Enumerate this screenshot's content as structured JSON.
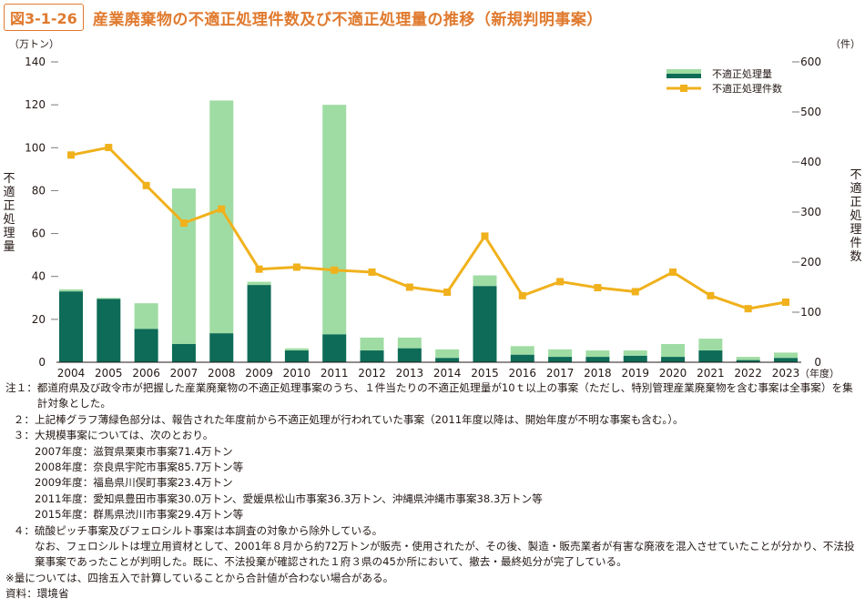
{
  "figure": {
    "label": "図3-1-26",
    "title": "産業廃棄物の不適正処理件数及び不適正処理量の推移（新規判明事案）"
  },
  "chart_data": {
    "type": "bar+line",
    "y_left_unit": "（万トン）",
    "y_right_unit": "（件）",
    "y_left_label": "不適正処理量",
    "y_right_label": "不適正処理件数",
    "x_unit": "（年度）",
    "y_left_lim": [
      0,
      140
    ],
    "y_right_lim": [
      0,
      600
    ],
    "y_left_ticks": [
      "0",
      "20",
      "40",
      "60",
      "80",
      "100",
      "120",
      "140"
    ],
    "y_right_ticks": [
      "0",
      "100",
      "200",
      "300",
      "400",
      "500",
      "600"
    ],
    "categories": [
      "2004",
      "2005",
      "2006",
      "2007",
      "2008",
      "2009",
      "2010",
      "2011",
      "2012",
      "2013",
      "2014",
      "2015",
      "2016",
      "2017",
      "2018",
      "2019",
      "2020",
      "2021",
      "2022",
      "2023"
    ],
    "series": [
      {
        "name": "不適正処理量",
        "kind": "stacked-bar",
        "color_main": "#0d6b57",
        "color_light": "#9fdca3",
        "dark_values": [
          33,
          29.5,
          15.5,
          8.5,
          13.5,
          36,
          5.5,
          13,
          5.5,
          6.5,
          2,
          35.5,
          3.5,
          2.5,
          2.5,
          3,
          2.5,
          5.5,
          1,
          2
        ],
        "light_values": [
          1,
          0.5,
          12,
          72.5,
          108.5,
          1.5,
          1,
          107,
          6,
          5,
          4,
          5,
          4,
          3.5,
          3,
          2.5,
          6,
          5.5,
          1.5,
          2.5
        ]
      },
      {
        "name": "不適正処理件数",
        "kind": "line",
        "color": "#f0b11c",
        "values": [
          414,
          429,
          353,
          278,
          306,
          186,
          190,
          184,
          180,
          150,
          140,
          252,
          133,
          161,
          149,
          141,
          180,
          133,
          107,
          120
        ]
      }
    ],
    "legend": {
      "position": "top-right",
      "entries": [
        "不適正処理量",
        "不適正処理件数"
      ]
    },
    "grid": "dashed-ticks"
  },
  "notes": [
    {
      "mark": "注１：",
      "text": "都道府県及び政令市が把握した産業廃棄物の不適正処理事案のうち、１件当たりの不適正処理量が10ｔ以上の事案（ただし、特別管理産業廃棄物を含む事案は全事案）を集計対象とした。"
    },
    {
      "mark": "２：",
      "text": "上記棒グラフ薄緑色部分は、報告された年度前から不適正処理が行われていた事案（2011年度以降は、開始年度が不明な事案も含む。）。"
    },
    {
      "mark": "３：",
      "text": "大規模事案については、次のとおり。",
      "subs": [
        "2007年度：滋賀県栗東市事案71.4万トン",
        "2008年度：奈良県宇陀市事案85.7万トン等",
        "2009年度：福島県川俣町事案23.4万トン",
        "2011年度：愛知県豊田市事案30.0万トン、愛媛県松山市事案36.3万トン、沖縄県沖縄市事案38.3万トン等",
        "2015年度：群馬県渋川市事案29.4万トン等"
      ]
    },
    {
      "mark": "４：",
      "text": "硫酸ピッチ事案及びフェロシルト事案は本調査の対象から除外している。",
      "cont": "なお、フェロシルトは埋立用資材として、2001年８月から約72万トンが販売・使用されたが、その後、製造・販売業者が有害な廃液を混入させていたことが分かり、不法投棄事案であったことが判明した。既に、不法投棄が確認された１府３県の45か所において、撤去・最終処分が完了している。"
    }
  ],
  "footnote": "※量については、四捨五入で計算していることから合計値が合わない場合がある。",
  "source": "資料：環境省"
}
